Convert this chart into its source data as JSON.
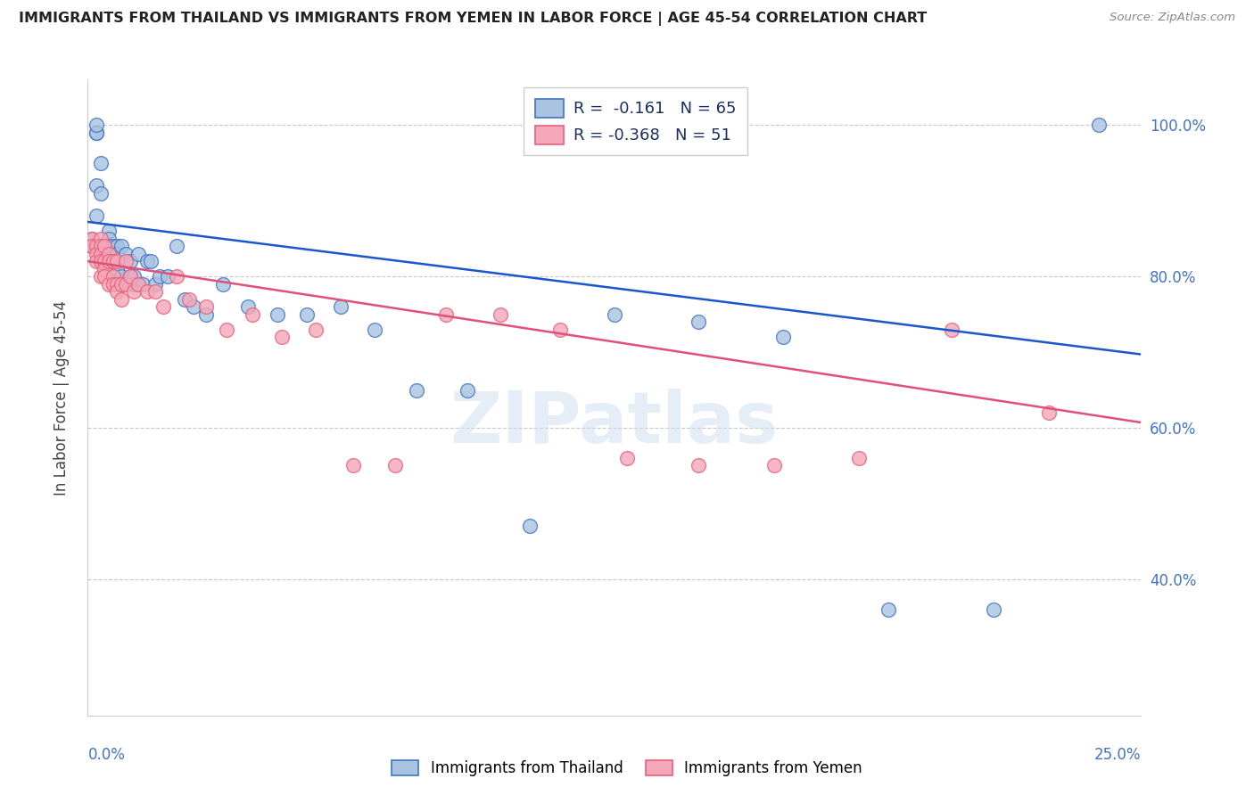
{
  "title": "IMMIGRANTS FROM THAILAND VS IMMIGRANTS FROM YEMEN IN LABOR FORCE | AGE 45-54 CORRELATION CHART",
  "source": "Source: ZipAtlas.com",
  "ylabel": "In Labor Force | Age 45-54",
  "thailand_color": "#a8c4e0",
  "thailand_edge": "#4472c4",
  "yemen_color": "#f4a7b9",
  "yemen_edge": "#e8607a",
  "trendline_thailand": "#1a56cc",
  "trendline_yemen": "#e0507a",
  "legend_R_thailand": "-0.161",
  "legend_N_thailand": "65",
  "legend_R_yemen": "-0.368",
  "legend_N_yemen": "51",
  "watermark": "ZIPatlas",
  "xmin": 0.0,
  "xmax": 0.25,
  "ymin": 0.22,
  "ymax": 1.06,
  "thailand_trend_x0": 0.0,
  "thailand_trend_y0": 0.872,
  "thailand_trend_x1": 0.25,
  "thailand_trend_y1": 0.697,
  "yemen_trend_x0": 0.0,
  "yemen_trend_y0": 0.82,
  "yemen_trend_x1": 0.25,
  "yemen_trend_y1": 0.607,
  "thailand_x": [
    0.001,
    0.001,
    0.001,
    0.002,
    0.002,
    0.002,
    0.002,
    0.002,
    0.003,
    0.003,
    0.003,
    0.003,
    0.003,
    0.003,
    0.003,
    0.004,
    0.004,
    0.004,
    0.004,
    0.005,
    0.005,
    0.005,
    0.005,
    0.005,
    0.006,
    0.006,
    0.006,
    0.006,
    0.007,
    0.007,
    0.007,
    0.008,
    0.008,
    0.008,
    0.009,
    0.01,
    0.01,
    0.011,
    0.011,
    0.012,
    0.013,
    0.014,
    0.015,
    0.016,
    0.017,
    0.019,
    0.021,
    0.023,
    0.025,
    0.028,
    0.032,
    0.038,
    0.045,
    0.052,
    0.06,
    0.068,
    0.078,
    0.09,
    0.105,
    0.125,
    0.145,
    0.165,
    0.19,
    0.215,
    0.24
  ],
  "thailand_y": [
    0.85,
    0.84,
    0.84,
    0.99,
    0.99,
    1.0,
    0.92,
    0.88,
    0.84,
    0.84,
    0.83,
    0.84,
    0.84,
    0.95,
    0.91,
    0.84,
    0.83,
    0.83,
    0.82,
    0.86,
    0.85,
    0.84,
    0.82,
    0.82,
    0.84,
    0.83,
    0.82,
    0.8,
    0.84,
    0.83,
    0.81,
    0.84,
    0.8,
    0.79,
    0.83,
    0.8,
    0.82,
    0.8,
    0.79,
    0.83,
    0.79,
    0.82,
    0.82,
    0.79,
    0.8,
    0.8,
    0.84,
    0.77,
    0.76,
    0.75,
    0.79,
    0.76,
    0.75,
    0.75,
    0.76,
    0.73,
    0.65,
    0.65,
    0.47,
    0.75,
    0.74,
    0.72,
    0.36,
    0.36,
    1.0
  ],
  "yemen_x": [
    0.001,
    0.001,
    0.002,
    0.002,
    0.002,
    0.003,
    0.003,
    0.003,
    0.003,
    0.003,
    0.004,
    0.004,
    0.004,
    0.004,
    0.005,
    0.005,
    0.005,
    0.006,
    0.006,
    0.006,
    0.007,
    0.007,
    0.007,
    0.008,
    0.008,
    0.009,
    0.009,
    0.01,
    0.011,
    0.012,
    0.014,
    0.016,
    0.018,
    0.021,
    0.024,
    0.028,
    0.033,
    0.039,
    0.046,
    0.054,
    0.063,
    0.073,
    0.085,
    0.098,
    0.112,
    0.128,
    0.145,
    0.163,
    0.183,
    0.205,
    0.228
  ],
  "yemen_y": [
    0.85,
    0.84,
    0.84,
    0.83,
    0.82,
    0.85,
    0.84,
    0.83,
    0.82,
    0.8,
    0.84,
    0.82,
    0.81,
    0.8,
    0.83,
    0.82,
    0.79,
    0.82,
    0.8,
    0.79,
    0.82,
    0.79,
    0.78,
    0.79,
    0.77,
    0.82,
    0.79,
    0.8,
    0.78,
    0.79,
    0.78,
    0.78,
    0.76,
    0.8,
    0.77,
    0.76,
    0.73,
    0.75,
    0.72,
    0.73,
    0.55,
    0.55,
    0.75,
    0.75,
    0.73,
    0.56,
    0.55,
    0.55,
    0.56,
    0.73,
    0.62
  ]
}
